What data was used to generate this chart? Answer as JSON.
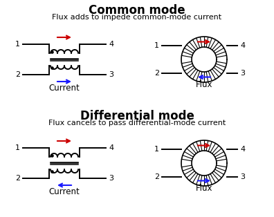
{
  "title_common": "Common mode",
  "subtitle_common": "Flux adds to impede common-mode current",
  "title_diff": "Differential mode",
  "subtitle_diff": "Flux cancels to pass differential-mode current",
  "label_current": "Current",
  "label_flux": "Flux",
  "bg_color": "#ffffff",
  "line_color": "#000000",
  "red_color": "#cc0000",
  "blue_color": "#1a1aff",
  "title_fontsize": 12,
  "subtitle_fontsize": 8,
  "label_fontsize": 8.5,
  "num_fontsize": 8
}
